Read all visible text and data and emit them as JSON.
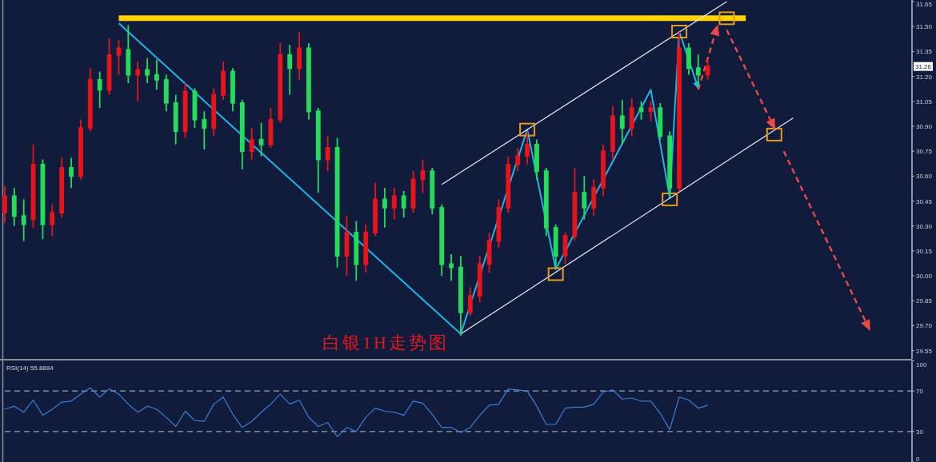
{
  "chart_data": [
    {
      "type": "candlestick",
      "title": "白银1H走势图",
      "categories": [
        null,
        null,
        null,
        null,
        null,
        null,
        null,
        null,
        null,
        null,
        null,
        null,
        null,
        null,
        null,
        null,
        null,
        null,
        null,
        null,
        null,
        null,
        null,
        null,
        null,
        null,
        null,
        null,
        null,
        null,
        null,
        null,
        null,
        null,
        null,
        null,
        null,
        null,
        null,
        null,
        null,
        null,
        null,
        null,
        null,
        null,
        null,
        null,
        null,
        null,
        null,
        null,
        null,
        null,
        null,
        null,
        null,
        null,
        null,
        null,
        null,
        null,
        null,
        null,
        null,
        null,
        null,
        null,
        null,
        null,
        null,
        null,
        null,
        null,
        null,
        null,
        null,
        null,
        null,
        null,
        null,
        null,
        null,
        null,
        null,
        null,
        null,
        null,
        null,
        null,
        null,
        null,
        null,
        null,
        null,
        null
      ],
      "ohlc": [
        [
          30.38,
          30.54,
          30.32,
          30.48
        ],
        [
          30.48,
          30.53,
          30.3,
          30.36
        ],
        [
          30.36,
          30.46,
          30.21,
          30.31
        ],
        [
          30.34,
          30.79,
          30.29,
          30.67
        ],
        [
          30.67,
          30.7,
          30.22,
          30.31
        ],
        [
          30.31,
          30.43,
          30.24,
          30.38
        ],
        [
          30.38,
          30.71,
          30.35,
          30.65
        ],
        [
          30.65,
          30.71,
          30.53,
          30.6
        ],
        [
          30.6,
          30.94,
          30.58,
          30.89
        ],
        [
          30.89,
          31.25,
          30.87,
          31.18
        ],
        [
          31.18,
          31.23,
          31.01,
          31.12
        ],
        [
          31.12,
          31.43,
          31.09,
          31.33
        ],
        [
          31.33,
          31.42,
          31.21,
          31.37
        ],
        [
          31.36,
          31.51,
          31.16,
          31.21
        ],
        [
          31.21,
          31.29,
          31.05,
          31.24
        ],
        [
          31.24,
          31.31,
          31.16,
          31.21
        ],
        [
          31.21,
          31.3,
          31.12,
          31.18
        ],
        [
          31.18,
          31.21,
          30.99,
          31.04
        ],
        [
          31.04,
          31.09,
          30.79,
          30.87
        ],
        [
          30.87,
          31.16,
          30.83,
          31.11
        ],
        [
          31.11,
          31.13,
          30.89,
          30.94
        ],
        [
          30.94,
          30.99,
          30.76,
          30.89
        ],
        [
          30.89,
          31.13,
          30.84,
          31.09
        ],
        [
          31.09,
          31.29,
          31.06,
          31.23
        ],
        [
          31.23,
          31.25,
          30.99,
          31.04
        ],
        [
          31.04,
          31.06,
          30.64,
          30.75
        ],
        [
          30.75,
          30.89,
          30.7,
          30.82
        ],
        [
          30.82,
          30.92,
          30.72,
          30.79
        ],
        [
          30.79,
          31.01,
          30.77,
          30.94
        ],
        [
          30.94,
          31.4,
          30.92,
          31.33
        ],
        [
          31.33,
          31.39,
          31.09,
          31.25
        ],
        [
          31.25,
          31.47,
          31.18,
          31.37
        ],
        [
          31.37,
          31.4,
          30.94,
          30.99
        ],
        [
          30.99,
          31.01,
          30.5,
          30.7
        ],
        [
          30.7,
          30.84,
          30.63,
          30.77
        ],
        [
          30.77,
          30.83,
          30.05,
          30.12
        ],
        [
          30.12,
          30.36,
          30.0,
          30.26
        ],
        [
          30.26,
          30.33,
          29.97,
          30.07
        ],
        [
          30.07,
          30.31,
          30.02,
          30.26
        ],
        [
          30.26,
          30.56,
          30.24,
          30.46
        ],
        [
          30.46,
          30.53,
          30.29,
          30.41
        ],
        [
          30.41,
          30.53,
          30.34,
          30.48
        ],
        [
          30.48,
          30.51,
          30.35,
          30.41
        ],
        [
          30.41,
          30.63,
          30.38,
          30.58
        ],
        [
          30.58,
          30.7,
          30.5,
          30.63
        ],
        [
          30.63,
          30.65,
          30.37,
          30.41
        ],
        [
          30.41,
          30.43,
          30.0,
          30.07
        ],
        [
          30.07,
          30.13,
          29.97,
          30.05
        ],
        [
          30.05,
          30.12,
          29.64,
          29.78
        ],
        [
          29.78,
          29.93,
          29.76,
          29.88
        ],
        [
          29.88,
          30.12,
          29.84,
          30.07
        ],
        [
          30.07,
          30.26,
          30.02,
          30.21
        ],
        [
          30.21,
          30.46,
          30.17,
          30.41
        ],
        [
          30.41,
          30.72,
          30.38,
          30.67
        ],
        [
          30.67,
          30.77,
          30.63,
          30.72
        ],
        [
          30.72,
          30.87,
          30.67,
          30.79
        ],
        [
          30.79,
          30.82,
          30.58,
          30.63
        ],
        [
          30.63,
          30.65,
          30.24,
          30.29
        ],
        [
          30.29,
          30.31,
          30.05,
          30.12
        ],
        [
          30.12,
          30.26,
          30.07,
          30.24
        ],
        [
          30.24,
          30.65,
          30.21,
          30.5
        ],
        [
          30.5,
          30.6,
          30.34,
          30.41
        ],
        [
          30.41,
          30.58,
          30.36,
          30.53
        ],
        [
          30.53,
          30.79,
          30.48,
          30.75
        ],
        [
          30.75,
          31.02,
          30.7,
          30.96
        ],
        [
          30.96,
          31.06,
          30.79,
          30.89
        ],
        [
          30.89,
          31.07,
          30.84,
          31.01
        ],
        [
          31.01,
          31.05,
          30.94,
          30.99
        ],
        [
          30.99,
          31.05,
          30.93,
          31.01
        ],
        [
          31.01,
          31.04,
          30.82,
          30.84
        ],
        [
          30.84,
          30.87,
          30.48,
          30.53
        ],
        [
          30.53,
          31.47,
          30.51,
          31.37
        ],
        [
          31.37,
          31.4,
          31.21,
          31.25
        ],
        [
          31.25,
          31.33,
          31.14,
          31.21
        ],
        [
          31.21,
          31.3,
          31.18,
          31.26
        ],
        null,
        null,
        null,
        null,
        null,
        null,
        null,
        null,
        null,
        null,
        null,
        null,
        null,
        null,
        null,
        null,
        null,
        null,
        null,
        null,
        null
      ],
      "colors": [
        "#e8141c",
        "#24dc5c",
        "#24dc5c",
        "#e8141c",
        "#24dc5c",
        "#e8141c",
        "#e8141c",
        "#24dc5c",
        "#e8141c",
        "#e8141c",
        "#24dc5c",
        "#e8141c",
        "#e8141c",
        "#24dc5c",
        "#e8141c",
        "#24dc5c",
        "#24dc5c",
        "#24dc5c",
        "#24dc5c",
        "#e8141c",
        "#24dc5c",
        "#24dc5c",
        "#e8141c",
        "#e8141c",
        "#24dc5c",
        "#24dc5c",
        "#e8141c",
        "#24dc5c",
        "#e8141c",
        "#e8141c",
        "#24dc5c",
        "#e8141c",
        "#24dc5c",
        "#24dc5c",
        "#e8141c",
        "#24dc5c",
        "#e8141c",
        "#24dc5c",
        "#e8141c",
        "#e8141c",
        "#24dc5c",
        "#e8141c",
        "#24dc5c",
        "#e8141c",
        "#e8141c",
        "#24dc5c",
        "#24dc5c",
        "#24dc5c",
        "#24dc5c",
        "#e8141c",
        "#e8141c",
        "#e8141c",
        "#e8141c",
        "#e8141c",
        "#e8141c",
        "#e8141c",
        "#24dc5c",
        "#24dc5c",
        "#24dc5c",
        "#e8141c",
        "#e8141c",
        "#24dc5c",
        "#e8141c",
        "#e8141c",
        "#e8141c",
        "#24dc5c",
        "#e8141c",
        "#24dc5c",
        "#e8141c",
        "#24dc5c",
        "#24dc5c",
        "#e8141c",
        "#24dc5c",
        "#24dc5c",
        "#e8141c",
        null,
        null,
        null,
        null,
        null,
        null,
        null,
        null,
        null,
        null,
        null,
        null,
        null,
        null,
        null,
        null,
        null,
        null,
        null,
        null,
        null
      ],
      "series": [
        {
          "type": "line",
          "color": "#ffd200",
          "values": [
            null,
            null,
            null,
            null,
            null,
            null,
            null,
            null,
            null,
            null,
            null,
            null,
            31.55,
            null,
            null,
            null,
            null,
            null,
            null,
            null,
            null,
            null,
            null,
            null,
            null,
            null,
            null,
            null,
            null,
            null,
            null,
            null,
            null,
            null,
            null,
            null,
            null,
            null,
            null,
            null,
            null,
            null,
            null,
            null,
            null,
            null,
            null,
            null,
            null,
            null,
            null,
            null,
            null,
            null,
            null,
            null,
            null,
            null,
            null,
            null,
            null,
            null,
            null,
            null,
            null,
            null,
            null,
            null,
            null,
            null,
            null,
            null,
            null,
            null,
            null,
            null,
            null,
            null,
            31.55,
            null,
            null,
            null,
            null,
            null,
            null,
            null,
            null,
            null,
            null,
            null,
            null,
            null,
            null,
            null,
            null,
            null
          ]
        },
        {
          "type": "line",
          "color": "#1fb4e6",
          "values": [
            null,
            null,
            null,
            null,
            null,
            null,
            null,
            null,
            null,
            null,
            null,
            null,
            31.52,
            null,
            null,
            null,
            null,
            null,
            null,
            null,
            null,
            null,
            null,
            null,
            null,
            null,
            null,
            null,
            null,
            null,
            null,
            null,
            null,
            null,
            null,
            null,
            null,
            null,
            null,
            null,
            null,
            null,
            null,
            null,
            null,
            null,
            null,
            null,
            29.65,
            null,
            null,
            null,
            null,
            null,
            null,
            30.88,
            null,
            null,
            30.04,
            null,
            null,
            null,
            null,
            null,
            null,
            null,
            null,
            null,
            31.12,
            null,
            30.47,
            31.47,
            null,
            31.13,
            null,
            null,
            null,
            null,
            null,
            null,
            null,
            null,
            null,
            null,
            null,
            null,
            null,
            null,
            null,
            null,
            null,
            null,
            null,
            null,
            null,
            null
          ]
        },
        {
          "type": "line",
          "color": "#e8eaf0",
          "values": [
            null,
            null,
            null,
            null,
            null,
            null,
            null,
            null,
            null,
            null,
            null,
            null,
            null,
            null,
            null,
            null,
            null,
            null,
            null,
            null,
            null,
            null,
            null,
            null,
            null,
            null,
            null,
            null,
            null,
            null,
            null,
            null,
            null,
            null,
            null,
            null,
            null,
            null,
            null,
            null,
            null,
            null,
            null,
            null,
            null,
            null,
            30.55,
            null,
            null,
            null,
            null,
            null,
            null,
            null,
            null,
            null,
            null,
            null,
            null,
            null,
            null,
            null,
            null,
            null,
            null,
            null,
            null,
            null,
            null,
            null,
            null,
            null,
            null,
            null,
            null,
            null,
            31.65,
            null,
            null,
            null,
            null,
            null,
            null,
            null,
            null,
            null,
            null,
            null,
            null,
            null,
            null,
            null,
            null,
            null,
            null,
            null
          ]
        },
        {
          "type": "line",
          "color": "#e8eaf0",
          "values": [
            null,
            null,
            null,
            null,
            null,
            null,
            null,
            null,
            null,
            null,
            null,
            null,
            null,
            null,
            null,
            null,
            null,
            null,
            null,
            null,
            null,
            null,
            null,
            null,
            null,
            null,
            null,
            null,
            null,
            null,
            null,
            null,
            null,
            null,
            null,
            null,
            null,
            null,
            null,
            null,
            null,
            null,
            null,
            null,
            null,
            null,
            null,
            null,
            29.65,
            null,
            null,
            null,
            null,
            null,
            null,
            null,
            null,
            null,
            null,
            null,
            null,
            null,
            null,
            null,
            null,
            null,
            null,
            null,
            null,
            null,
            null,
            null,
            null,
            null,
            null,
            null,
            null,
            null,
            null,
            null,
            null,
            null,
            null,
            30.95,
            null,
            null,
            null,
            null,
            null,
            null,
            null,
            null,
            null,
            null,
            null,
            null
          ]
        },
        {
          "type": "scatter",
          "color": "#e39a1e",
          "marker": "square",
          "values": [
            null,
            null,
            null,
            null,
            null,
            null,
            null,
            null,
            null,
            null,
            null,
            null,
            null,
            null,
            null,
            null,
            null,
            null,
            null,
            null,
            null,
            null,
            null,
            null,
            null,
            null,
            null,
            null,
            null,
            null,
            null,
            null,
            null,
            null,
            null,
            null,
            null,
            null,
            null,
            null,
            null,
            null,
            null,
            null,
            null,
            null,
            null,
            null,
            null,
            null,
            null,
            null,
            null,
            null,
            null,
            30.88,
            null,
            null,
            30.01,
            null,
            null,
            null,
            null,
            null,
            null,
            null,
            null,
            null,
            null,
            null,
            30.46,
            31.47,
            null,
            null,
            null,
            null,
            31.55,
            null,
            null,
            null,
            null,
            30.85,
            null,
            null,
            null,
            null,
            null,
            null,
            null,
            null,
            null,
            null,
            null,
            null,
            null,
            null
          ]
        },
        {
          "type": "line",
          "color": "#ec4a4a",
          "line_style": "dashed",
          "values": [
            null,
            null,
            null,
            null,
            null,
            null,
            null,
            null,
            null,
            null,
            null,
            null,
            null,
            null,
            null,
            null,
            null,
            null,
            null,
            null,
            null,
            null,
            null,
            null,
            null,
            null,
            null,
            null,
            null,
            null,
            null,
            null,
            null,
            null,
            null,
            null,
            null,
            null,
            null,
            null,
            null,
            null,
            null,
            null,
            null,
            null,
            null,
            null,
            null,
            null,
            null,
            null,
            null,
            null,
            null,
            null,
            null,
            null,
            null,
            null,
            null,
            null,
            null,
            null,
            null,
            null,
            null,
            null,
            null,
            null,
            null,
            null,
            null,
            31.12,
            null,
            31.5,
            null,
            null,
            null,
            null,
            null,
            null,
            null,
            null,
            null,
            null,
            null,
            null,
            null,
            null,
            null,
            null,
            null,
            null,
            null,
            null
          ]
        },
        {
          "type": "line",
          "color": "#ec4a4a",
          "line_style": "dashed",
          "values": [
            null,
            null,
            null,
            null,
            null,
            null,
            null,
            null,
            null,
            null,
            null,
            null,
            null,
            null,
            null,
            null,
            null,
            null,
            null,
            null,
            null,
            null,
            null,
            null,
            null,
            null,
            null,
            null,
            null,
            null,
            null,
            null,
            null,
            null,
            null,
            null,
            null,
            null,
            null,
            null,
            null,
            null,
            null,
            null,
            null,
            null,
            null,
            null,
            null,
            null,
            null,
            null,
            null,
            null,
            null,
            null,
            null,
            null,
            null,
            null,
            null,
            null,
            null,
            null,
            null,
            null,
            null,
            null,
            null,
            null,
            null,
            null,
            null,
            null,
            null,
            null,
            31.48,
            null,
            null,
            null,
            null,
            30.89,
            null,
            null,
            null,
            null,
            null,
            null,
            null,
            null,
            null,
            null,
            null,
            null,
            null,
            null
          ]
        },
        {
          "type": "line",
          "color": "#ec4a4a",
          "line_style": "dashed",
          "values": [
            null,
            null,
            null,
            null,
            null,
            null,
            null,
            null,
            null,
            null,
            null,
            null,
            null,
            null,
            null,
            null,
            null,
            null,
            null,
            null,
            null,
            null,
            null,
            null,
            null,
            null,
            null,
            null,
            null,
            null,
            null,
            null,
            null,
            null,
            null,
            null,
            null,
            null,
            null,
            null,
            null,
            null,
            null,
            null,
            null,
            null,
            null,
            null,
            null,
            null,
            null,
            null,
            null,
            null,
            null,
            null,
            null,
            null,
            null,
            null,
            null,
            null,
            null,
            null,
            null,
            null,
            null,
            null,
            null,
            null,
            null,
            null,
            null,
            null,
            null,
            null,
            null,
            null,
            null,
            null,
            null,
            null,
            30.75,
            null,
            null,
            null,
            null,
            null,
            null,
            null,
            null,
            29.68,
            null,
            null,
            null,
            null
          ]
        }
      ],
      "ylim": [
        29.5,
        31.66
      ],
      "yticks": [
        29.55,
        {
          "value": 29.7,
          "label": "29.70"
        },
        29.85,
        {
          "value": 30,
          "label": "30.00"
        },
        30.15,
        {
          "value": 30.3,
          "label": "30.30"
        },
        30.45,
        {
          "value": 30.6,
          "label": "30.60"
        },
        30.75,
        {
          "value": 30.9,
          "label": "30.90"
        },
        31.05,
        {
          "value": 31.2,
          "label": "31.20"
        },
        31.35,
        {
          "value": 31.5,
          "label": "31.50"
        },
        31.65
      ],
      "tick_labels": "y",
      "annotations": [
        {
          "text": "31.26",
          "y": 31.26
        }
      ]
    },
    {
      "type": "line",
      "title": "RSI(14) 55.8884",
      "categories": [
        null,
        null,
        null,
        null,
        null,
        null,
        null,
        null,
        null,
        null,
        null,
        null,
        null,
        null,
        null,
        null,
        null,
        null,
        null,
        null,
        null,
        null,
        null,
        null,
        null,
        null,
        null,
        null,
        null,
        null,
        null,
        null,
        null,
        null,
        null,
        null,
        null,
        null,
        null,
        null,
        null,
        null,
        null,
        null,
        null,
        null,
        null,
        null,
        null,
        null,
        null,
        null,
        null,
        null,
        null,
        null,
        null,
        null,
        null,
        null,
        null,
        null,
        null,
        null,
        null,
        null,
        null,
        null,
        null,
        null,
        null,
        null,
        null,
        null,
        null,
        null,
        null,
        null,
        null,
        null,
        null,
        null,
        null,
        null,
        null,
        null,
        null,
        null,
        null,
        null,
        null,
        null,
        null,
        null,
        null,
        null
      ],
      "series": [
        {
          "color": "#3b7dd8",
          "values": [
            52,
            55,
            49,
            61,
            46,
            52,
            59,
            60,
            67,
            73,
            64,
            72,
            67,
            57,
            49,
            55,
            52,
            44,
            35,
            50,
            41,
            40,
            57,
            64,
            47,
            34,
            40,
            49,
            57,
            67,
            57,
            61,
            44,
            35,
            39,
            25,
            34,
            30,
            44,
            53,
            50,
            49,
            46,
            60,
            58,
            47,
            34,
            34,
            29,
            34,
            46,
            56,
            57,
            72,
            71,
            70,
            55,
            37,
            37,
            53,
            54,
            54,
            57,
            69,
            71,
            62,
            63,
            60,
            60,
            48,
            32,
            64,
            61,
            53,
            56,
            null,
            null,
            null,
            null,
            null,
            null,
            null,
            null,
            null,
            null,
            null,
            null,
            null,
            null,
            null,
            null,
            null,
            null,
            null,
            null,
            null
          ]
        }
      ],
      "ylim": [
        0,
        100
      ],
      "yticks": [
        0,
        30,
        70,
        100
      ],
      "tick_labels": "y",
      "ref_lines": [
        {
          "axis": "y",
          "value": 70,
          "color": "#c0c4cc",
          "line_style": "dashed"
        },
        {
          "axis": "y",
          "value": 30,
          "color": "#c0c4cc",
          "line_style": "dashed"
        }
      ]
    }
  ]
}
